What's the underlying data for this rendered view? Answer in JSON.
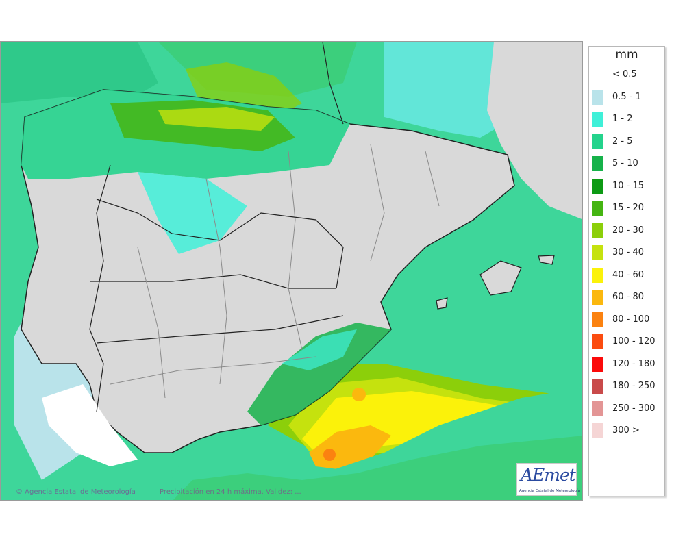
{
  "map": {
    "copyright": "© Agencia Estatal de Meteorología",
    "validity": "Precipitación en 24 h máxima. Validez: ...",
    "logo_text": "AEmet",
    "logo_subtitle": "Agencia Estatal de Meteorología",
    "sea_color": "#3ed69a",
    "land_color": "#d9d9d9",
    "border_color": "#222222",
    "province_border_color": "#8a8a8a"
  },
  "legend": {
    "unit": "mm",
    "items": [
      {
        "label": "< 0.5",
        "color": null
      },
      {
        "label": "0.5 - 1",
        "color": "#b9e3ea"
      },
      {
        "label": "1 - 2",
        "color": "#3ff0d8"
      },
      {
        "label": "2 - 5",
        "color": "#24d38c"
      },
      {
        "label": "5 - 10",
        "color": "#16b24a"
      },
      {
        "label": "10 - 15",
        "color": "#0d9a14"
      },
      {
        "label": "15 - 20",
        "color": "#45b512"
      },
      {
        "label": "20 - 30",
        "color": "#8ccf0a"
      },
      {
        "label": "30 - 40",
        "color": "#c5e20e"
      },
      {
        "label": "40 - 60",
        "color": "#fbf20a"
      },
      {
        "label": "60 - 80",
        "color": "#fbb80e"
      },
      {
        "label": "80 - 100",
        "color": "#fb8210"
      },
      {
        "label": "100 - 120",
        "color": "#fb4c10"
      },
      {
        "label": "120 - 180",
        "color": "#fb0a0a"
      },
      {
        "label": "180 - 250",
        "color": "#c94a4a"
      },
      {
        "label": "250 - 300",
        "color": "#e39595"
      },
      {
        "label": "300 >",
        "color": "#f5d5d5"
      }
    ]
  }
}
